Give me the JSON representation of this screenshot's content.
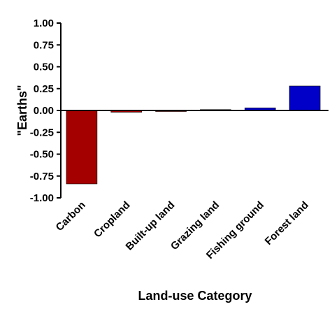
{
  "chart_data": {
    "type": "bar",
    "title": "",
    "xlabel": "Land-use Category",
    "ylabel": "\"Earths\"",
    "categories": [
      "Carbon",
      "Cropland",
      "Built-up land",
      "Grazing land",
      "Fishing ground",
      "Forest land"
    ],
    "values": [
      -0.84,
      -0.02,
      0.0,
      0.01,
      0.03,
      0.28
    ],
    "colors": [
      "#a50000",
      "#a50000",
      "#a50000",
      "#0000c8",
      "#0000c8",
      "#0000c8"
    ],
    "ylim": [
      -1.0,
      1.0
    ],
    "yticks": [
      "1.00",
      "0.75",
      "0.50",
      "0.25",
      "0.00",
      "-0.25",
      "-0.50",
      "-0.75",
      "-1.00"
    ],
    "grid": false,
    "legend": "none"
  }
}
